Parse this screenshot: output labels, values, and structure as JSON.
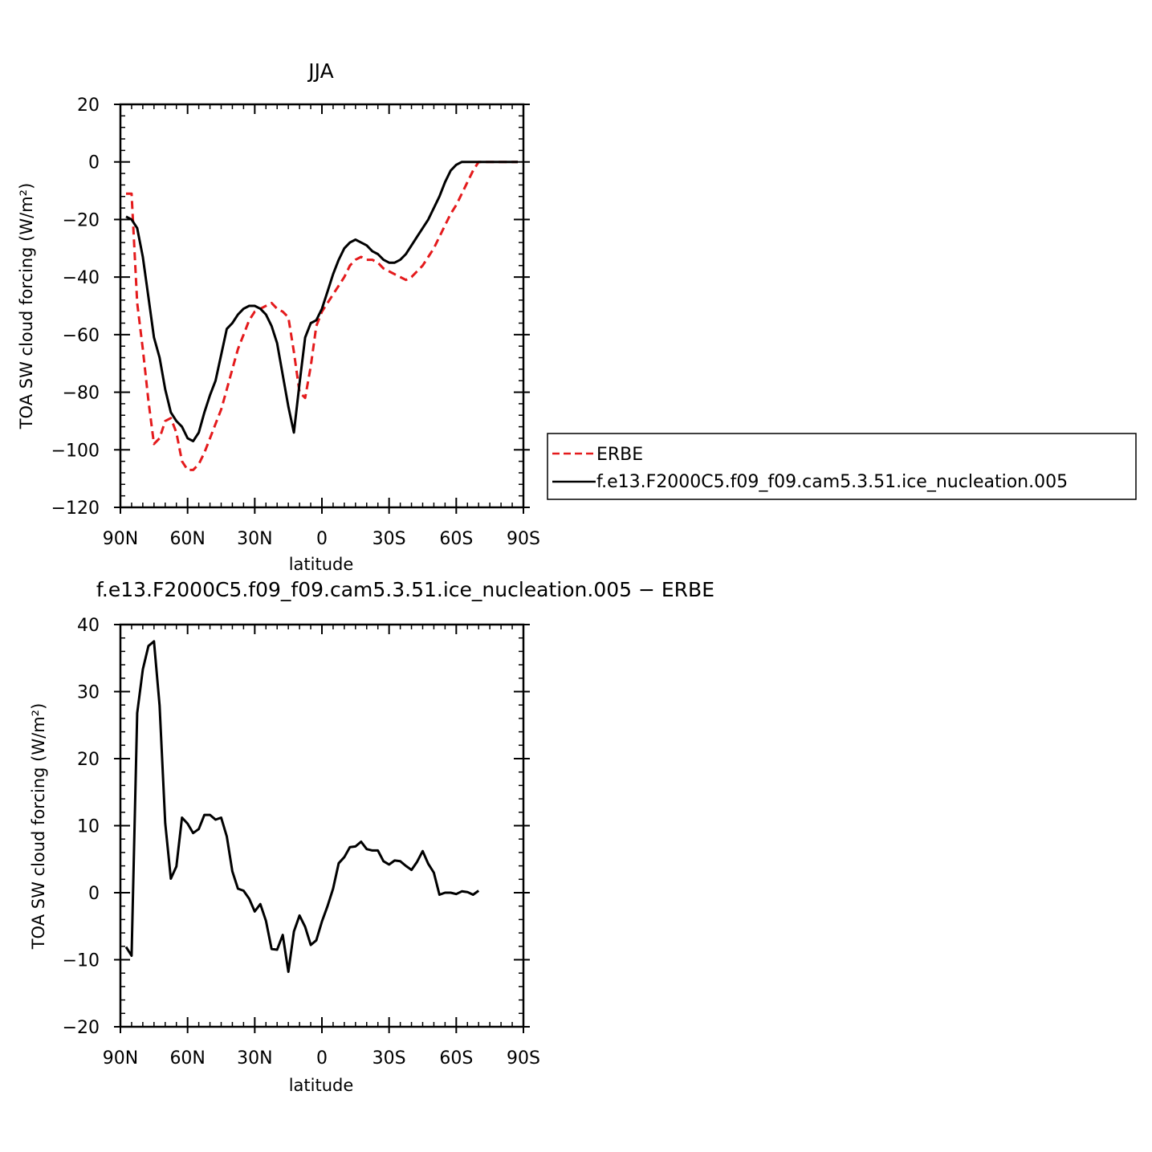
{
  "chart_data": [
    {
      "type": "line",
      "title": "JJA",
      "xlabel": "latitude",
      "ylabel": "TOA SW cloud forcing (W/m²)",
      "xlim": [
        -90,
        90
      ],
      "ylim": [
        -120,
        20
      ],
      "x_direction": "north-to-south",
      "x_ticks": [
        -90,
        -60,
        -30,
        0,
        30,
        60,
        90
      ],
      "x_tick_labels": [
        "90N",
        "60N",
        "30N",
        "0",
        "30S",
        "60S",
        "90S"
      ],
      "y_ticks": [
        20,
        0,
        -20,
        -40,
        -60,
        -80,
        -100,
        -120
      ],
      "y_tick_labels": [
        "20",
        "0",
        "−20",
        "−40",
        "−60",
        "−80",
        "−100",
        "−120"
      ],
      "legend": "right",
      "series": [
        {
          "name": "ERBE",
          "color": "#e41a1c",
          "dash": "dashed",
          "points": [
            [
              -87.5,
              -11
            ],
            [
              -85,
              -11
            ],
            [
              -82.5,
              -49
            ],
            [
              -80,
              -65
            ],
            [
              -77.5,
              -83
            ],
            [
              -75,
              -98
            ],
            [
              -72.5,
              -96
            ],
            [
              -70,
              -90
            ],
            [
              -67.5,
              -89
            ],
            [
              -65,
              -94
            ],
            [
              -62.5,
              -104
            ],
            [
              -60,
              -107
            ],
            [
              -57.5,
              -107
            ],
            [
              -55,
              -105
            ],
            [
              -52.5,
              -101
            ],
            [
              -50,
              -96
            ],
            [
              -47.5,
              -91
            ],
            [
              -45,
              -86
            ],
            [
              -42.5,
              -79
            ],
            [
              -40,
              -72
            ],
            [
              -37.5,
              -65
            ],
            [
              -35,
              -60
            ],
            [
              -32.5,
              -55
            ],
            [
              -30,
              -52
            ],
            [
              -27.5,
              -51
            ],
            [
              -25,
              -50
            ],
            [
              -22.5,
              -49
            ],
            [
              -20,
              -51
            ],
            [
              -17.5,
              -52
            ],
            [
              -15,
              -54
            ],
            [
              -12.5,
              -66
            ],
            [
              -10,
              -80
            ],
            [
              -7.5,
              -82
            ],
            [
              -5,
              -71
            ],
            [
              -2.5,
              -57
            ],
            [
              0,
              -52
            ],
            [
              2.5,
              -49
            ],
            [
              5,
              -46
            ],
            [
              7.5,
              -43
            ],
            [
              10,
              -40
            ],
            [
              12.5,
              -36
            ],
            [
              15,
              -34
            ],
            [
              17.5,
              -33
            ],
            [
              20,
              -34
            ],
            [
              22.5,
              -34
            ],
            [
              25,
              -35
            ],
            [
              27.5,
              -37
            ],
            [
              30,
              -38
            ],
            [
              32.5,
              -39
            ],
            [
              35,
              -40
            ],
            [
              37.5,
              -41
            ],
            [
              40,
              -40
            ],
            [
              42.5,
              -38
            ],
            [
              45,
              -36
            ],
            [
              47.5,
              -33
            ],
            [
              50,
              -30
            ],
            [
              52.5,
              -26
            ],
            [
              55,
              -22
            ],
            [
              57.5,
              -18
            ],
            [
              60,
              -15
            ],
            [
              62.5,
              -11
            ],
            [
              65,
              -7
            ],
            [
              67.5,
              -3
            ],
            [
              70,
              0
            ],
            [
              72.5,
              0
            ],
            [
              75,
              0
            ],
            [
              77.5,
              0
            ],
            [
              80,
              0
            ],
            [
              82.5,
              0
            ],
            [
              85,
              0
            ],
            [
              87.5,
              0
            ]
          ]
        },
        {
          "name": "f.e13.F2000C5.f09_f09.cam5.3.51.ice_nucleation.005",
          "color": "#000000",
          "dash": "solid",
          "points": [
            [
              -87.5,
              -19
            ],
            [
              -85,
              -20
            ],
            [
              -82.5,
              -23
            ],
            [
              -80,
              -33
            ],
            [
              -77.5,
              -47
            ],
            [
              -75,
              -61
            ],
            [
              -72.5,
              -68
            ],
            [
              -70,
              -79
            ],
            [
              -67.5,
              -87
            ],
            [
              -65,
              -90
            ],
            [
              -62.5,
              -92
            ],
            [
              -60,
              -96
            ],
            [
              -57.5,
              -97
            ],
            [
              -55,
              -94
            ],
            [
              -52.5,
              -87
            ],
            [
              -50,
              -81
            ],
            [
              -47.5,
              -76
            ],
            [
              -45,
              -67
            ],
            [
              -42.5,
              -58
            ],
            [
              -40,
              -56
            ],
            [
              -37.5,
              -53
            ],
            [
              -35,
              -51
            ],
            [
              -32.5,
              -50
            ],
            [
              -30,
              -50
            ],
            [
              -27.5,
              -51
            ],
            [
              -25,
              -53
            ],
            [
              -22.5,
              -57
            ],
            [
              -20,
              -63
            ],
            [
              -17.5,
              -74
            ],
            [
              -15,
              -85
            ],
            [
              -12.5,
              -94
            ],
            [
              -10,
              -77
            ],
            [
              -7.5,
              -61
            ],
            [
              -5,
              -56
            ],
            [
              -2.5,
              -55
            ],
            [
              0,
              -51
            ],
            [
              2.5,
              -45
            ],
            [
              5,
              -39
            ],
            [
              7.5,
              -34
            ],
            [
              10,
              -30
            ],
            [
              12.5,
              -28
            ],
            [
              15,
              -27
            ],
            [
              17.5,
              -28
            ],
            [
              20,
              -29
            ],
            [
              22.5,
              -31
            ],
            [
              25,
              -32
            ],
            [
              27.5,
              -34
            ],
            [
              30,
              -35
            ],
            [
              32.5,
              -35
            ],
            [
              35,
              -34
            ],
            [
              37.5,
              -32
            ],
            [
              40,
              -29
            ],
            [
              42.5,
              -26
            ],
            [
              45,
              -23
            ],
            [
              47.5,
              -20
            ],
            [
              50,
              -16
            ],
            [
              52.5,
              -12
            ],
            [
              55,
              -7
            ],
            [
              57.5,
              -3
            ],
            [
              60,
              -1
            ],
            [
              62.5,
              0
            ],
            [
              65,
              0
            ],
            [
              67.5,
              0
            ],
            [
              70,
              0
            ],
            [
              72.5,
              0
            ],
            [
              75,
              0
            ],
            [
              77.5,
              0
            ],
            [
              80,
              0
            ],
            [
              82.5,
              0
            ],
            [
              85,
              0
            ],
            [
              87.5,
              0
            ]
          ]
        }
      ]
    },
    {
      "type": "line",
      "title": "f.e13.F2000C5.f09_f09.cam5.3.51.ice_nucleation.005 − ERBE",
      "xlabel": "latitude",
      "ylabel": "TOA SW cloud forcing (W/m²)",
      "xlim": [
        -90,
        90
      ],
      "ylim": [
        -20,
        40
      ],
      "x_direction": "north-to-south",
      "x_ticks": [
        -90,
        -60,
        -30,
        0,
        30,
        60,
        90
      ],
      "x_tick_labels": [
        "90N",
        "60N",
        "30N",
        "0",
        "30S",
        "60S",
        "90S"
      ],
      "y_ticks": [
        40,
        30,
        20,
        10,
        0,
        -10,
        -20
      ],
      "y_tick_labels": [
        "40",
        "30",
        "20",
        "10",
        "0",
        "−10",
        "−20"
      ],
      "series": [
        {
          "color": "#000000",
          "dash": "solid",
          "points": [
            [
              -87.5,
              -8.1
            ],
            [
              -85,
              -9.4
            ],
            [
              -82.5,
              26.8
            ],
            [
              -80,
              33.3
            ],
            [
              -77.5,
              36.8
            ],
            [
              -75,
              37.5
            ],
            [
              -72.5,
              27.9
            ],
            [
              -70,
              10.4
            ],
            [
              -67.5,
              2.1
            ],
            [
              -65,
              3.9
            ],
            [
              -62.5,
              11.2
            ],
            [
              -60,
              10.3
            ],
            [
              -57.5,
              8.9
            ],
            [
              -55,
              9.5
            ],
            [
              -52.5,
              11.6
            ],
            [
              -50,
              11.6
            ],
            [
              -47.5,
              10.9
            ],
            [
              -45,
              11.2
            ],
            [
              -42.5,
              8.4
            ],
            [
              -40,
              3.2
            ],
            [
              -37.5,
              0.6
            ],
            [
              -35,
              0.3
            ],
            [
              -32.5,
              -0.9
            ],
            [
              -30,
              -2.8
            ],
            [
              -27.5,
              -1.7
            ],
            [
              -25,
              -4.2
            ],
            [
              -22.5,
              -8.4
            ],
            [
              -20,
              -8.5
            ],
            [
              -17.5,
              -6.3
            ],
            [
              -15,
              -11.8
            ],
            [
              -12.5,
              -5.8
            ],
            [
              -10,
              -3.4
            ],
            [
              -7.5,
              -5.1
            ],
            [
              -5,
              -7.8
            ],
            [
              -2.5,
              -7.1
            ],
            [
              0,
              -4.3
            ],
            [
              2.5,
              -2
            ],
            [
              5,
              0.6
            ],
            [
              7.5,
              4.4
            ],
            [
              10,
              5.3
            ],
            [
              12.5,
              6.8
            ],
            [
              15,
              6.9
            ],
            [
              17.5,
              7.6
            ],
            [
              20,
              6.5
            ],
            [
              22.5,
              6.3
            ],
            [
              25,
              6.3
            ],
            [
              27.5,
              4.7
            ],
            [
              30,
              4.2
            ],
            [
              32.5,
              4.8
            ],
            [
              35,
              4.7
            ],
            [
              37.5,
              4
            ],
            [
              40,
              3.4
            ],
            [
              42.5,
              4.6
            ],
            [
              45,
              6.2
            ],
            [
              47.5,
              4.3
            ],
            [
              50,
              3
            ],
            [
              52.5,
              -0.3
            ],
            [
              55,
              0
            ],
            [
              57.5,
              0
            ],
            [
              60,
              -0.2
            ],
            [
              62.5,
              0.2
            ],
            [
              65,
              0.1
            ],
            [
              67.5,
              -0.3
            ],
            [
              70,
              0.3
            ]
          ]
        }
      ]
    }
  ]
}
